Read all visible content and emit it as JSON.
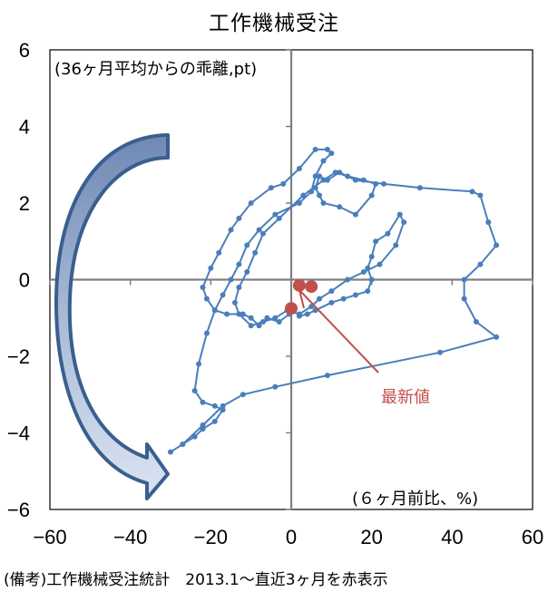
{
  "title": "工作機械受注",
  "y_unit_label": "(36ヶ月平均からの乖離,pt)",
  "x_unit_label": "(６ヶ月前比、%)",
  "annotation": {
    "text": "最新値",
    "color": "#c0504d"
  },
  "footnote": "(備考)工作機械受注統計　2013.1～直近3ヶ月を赤表示",
  "colors": {
    "series": "#4a7ebb",
    "latest": "#c0504d",
    "arrow_stroke": "#3a5f8f",
    "arrow_fill_top": "#7f97bd",
    "arrow_fill_bottom": "#dbe4f3",
    "axis": "#808080"
  },
  "chart_data": {
    "type": "scatter",
    "mode": "connected",
    "title": "工作機械受注",
    "xlabel": "(６ヶ月前比、%)",
    "ylabel": "(36ヶ月平均からの乖離,pt)",
    "xlim": [
      -60,
      60
    ],
    "ylim": [
      -6,
      6
    ],
    "xticks": [
      -60,
      -40,
      -20,
      0,
      20,
      40,
      60
    ],
    "yticks": [
      -6,
      -4,
      -2,
      0,
      2,
      4,
      6
    ],
    "grid": false,
    "legend": null,
    "series": [
      {
        "name": "工作機械受注 (2013.1～)",
        "color": "#4a7ebb",
        "points": [
          [
            -0.5,
            -0.9
          ],
          [
            -3,
            -1.1
          ],
          [
            -6,
            -1.0
          ],
          [
            -8,
            -1.2
          ],
          [
            -10,
            -1.0
          ],
          [
            -12,
            -0.9
          ],
          [
            -16,
            -0.9
          ],
          [
            -19,
            -0.8
          ],
          [
            -21,
            -0.5
          ],
          [
            -22,
            -0.2
          ],
          [
            -20,
            0.3
          ],
          [
            -18,
            0.7
          ],
          [
            -15,
            1.3
          ],
          [
            -13,
            1.6
          ],
          [
            -10,
            2.0
          ],
          [
            -5,
            2.4
          ],
          [
            -2,
            2.5
          ],
          [
            2,
            2.9
          ],
          [
            6,
            3.4
          ],
          [
            9,
            3.4
          ],
          [
            10,
            3.3
          ],
          [
            8,
            3.1
          ],
          [
            6,
            2.7
          ],
          [
            5,
            2.3
          ],
          [
            2,
            2.0
          ],
          [
            -4,
            1.7
          ],
          [
            -8,
            1.3
          ],
          [
            -11,
            0.9
          ],
          [
            -13,
            0.4
          ],
          [
            -15,
            0.0
          ],
          [
            -17,
            -0.4
          ],
          [
            -19,
            -0.8
          ],
          [
            -21,
            -1.4
          ],
          [
            -23,
            -2.2
          ],
          [
            -24,
            -2.9
          ],
          [
            -22,
            -3.2
          ],
          [
            -19,
            -3.3
          ],
          [
            -17,
            -3.4
          ],
          [
            -19,
            -3.7
          ],
          [
            -22,
            -3.9
          ],
          [
            -24,
            -4.1
          ],
          [
            -27,
            -4.3
          ],
          [
            -30,
            -4.5
          ],
          [
            -27,
            -4.3
          ],
          [
            -22,
            -3.8
          ],
          [
            -17,
            -3.3
          ],
          [
            -12,
            -3.0
          ],
          [
            -4,
            -2.8
          ],
          [
            9,
            -2.5
          ],
          [
            37,
            -1.9
          ],
          [
            51,
            -1.5
          ],
          [
            46,
            -1.1
          ],
          [
            43,
            -0.5
          ],
          [
            43,
            0.0
          ],
          [
            47,
            0.4
          ],
          [
            51,
            0.9
          ],
          [
            49,
            1.5
          ],
          [
            47,
            2.2
          ],
          [
            45,
            2.3
          ],
          [
            32,
            2.4
          ],
          [
            23,
            2.5
          ],
          [
            16,
            2.6
          ],
          [
            12,
            2.8
          ],
          [
            9,
            2.6
          ],
          [
            7,
            2.7
          ],
          [
            6,
            2.4
          ],
          [
            7,
            2.2
          ],
          [
            8,
            2.0
          ],
          [
            12,
            1.9
          ],
          [
            16,
            1.7
          ],
          [
            20,
            2.2
          ],
          [
            21,
            2.5
          ],
          [
            18,
            2.6
          ],
          [
            14,
            2.7
          ],
          [
            11,
            2.8
          ],
          [
            8,
            2.6
          ],
          [
            3,
            2.2
          ],
          [
            -3,
            1.6
          ],
          [
            -7,
            1.2
          ],
          [
            -9,
            0.7
          ],
          [
            -11,
            0.2
          ],
          [
            -13,
            -0.2
          ],
          [
            -14,
            -0.6
          ],
          [
            -13,
            -0.9
          ],
          [
            -10,
            -1.2
          ],
          [
            -7,
            -1.1
          ],
          [
            -4,
            -1.0
          ],
          [
            -1,
            -0.8
          ],
          [
            2,
            -0.9
          ],
          [
            5,
            -0.7
          ],
          [
            7,
            -0.5
          ],
          [
            10,
            -0.3
          ],
          [
            14,
            0.0
          ],
          [
            18,
            0.2
          ],
          [
            22,
            0.4
          ],
          [
            26,
            0.9
          ],
          [
            28,
            1.5
          ],
          [
            27,
            1.7
          ],
          [
            24,
            1.2
          ],
          [
            21,
            1.0
          ],
          [
            20,
            0.6
          ],
          [
            19,
            0.3
          ],
          [
            20,
            0.0
          ],
          [
            19,
            -0.3
          ],
          [
            16,
            -0.4
          ],
          [
            13,
            -0.5
          ],
          [
            10,
            -0.6
          ],
          [
            6,
            -0.8
          ],
          [
            4,
            -0.9
          ],
          [
            2,
            -0.95
          ]
        ]
      },
      {
        "name": "直近3ヶ月",
        "color": "#c0504d",
        "points": [
          [
            0.0,
            -0.75
          ],
          [
            2.0,
            -0.15
          ],
          [
            5.0,
            -0.18
          ]
        ]
      }
    ]
  }
}
